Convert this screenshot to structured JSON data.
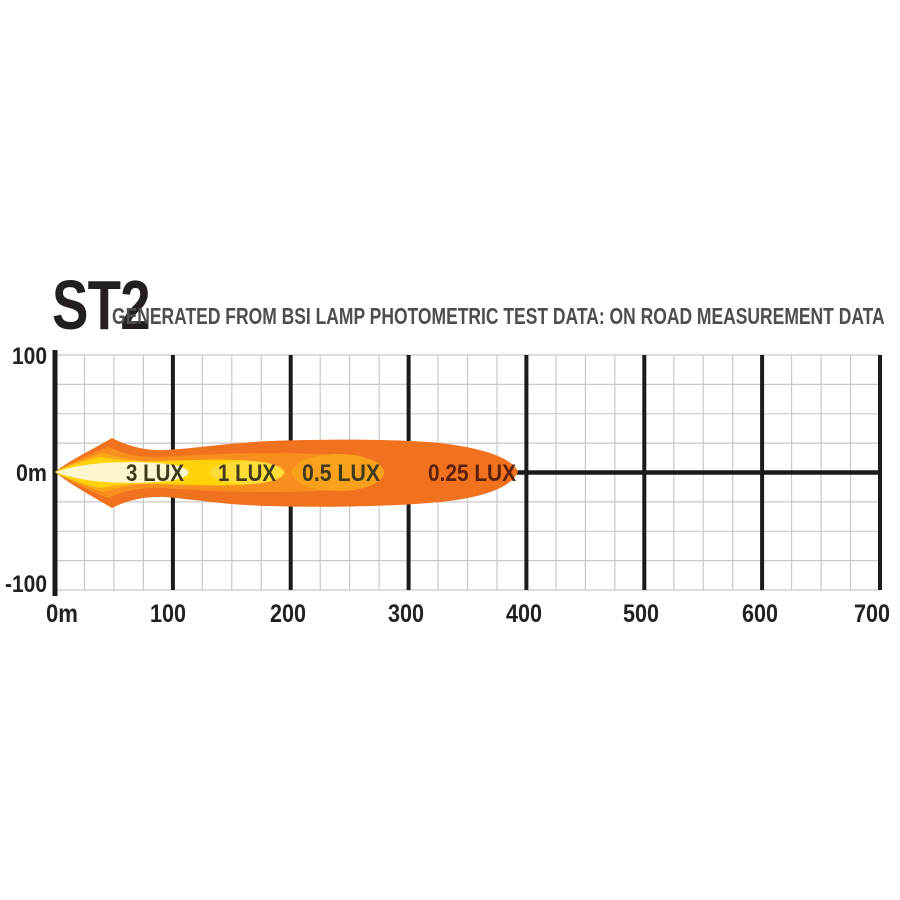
{
  "header": {
    "title": "ST2",
    "subtitle": "GENERATED FROM BSI LAMP PHOTOMETRIC TEST DATA: ON ROAD MEASUREMENT DATA"
  },
  "chart_data": {
    "type": "area",
    "title": "ST2",
    "subtitle": "GENERATED FROM BSI LAMP PHOTOMETRIC TEST DATA: ON ROAD MEASUREMENT DATA",
    "x_unit": "m",
    "xlim": [
      0,
      700
    ],
    "ylim": [
      -100,
      100
    ],
    "x_ticks": [
      "0m",
      "100",
      "200",
      "300",
      "400",
      "500",
      "600",
      "700"
    ],
    "y_ticks": [
      "100",
      "0m",
      "-100"
    ],
    "grid": {
      "on": true,
      "minor_step": 25,
      "major_step_x": 100,
      "minor_color": "#C8C9CB",
      "major_color": "#1B1B1B"
    },
    "legend_position": "inside-beam",
    "contours": [
      {
        "label": "3 LUX",
        "lux": 3,
        "reach_m": 115,
        "half_width_m": 9,
        "label_x_m": 85,
        "color": "#FDF6CE",
        "label_color": "#3E3A1C"
      },
      {
        "label": "1 LUX",
        "lux": 1,
        "reach_m": 195,
        "half_width_m": 13,
        "label_x_m": 163,
        "color": "#FFD30A",
        "label_color": "#3E3A1C"
      },
      {
        "label": "0.5 LUX",
        "lux": 0.5,
        "reach_m": 280,
        "half_width_m": 19,
        "label_x_m": 243,
        "color": "#F78E1E",
        "label_color": "#3E3A1C"
      },
      {
        "label": "0.25 LUX",
        "lux": 0.25,
        "reach_m": 393,
        "half_width_m": 29,
        "label_x_m": 355,
        "color": "#F0721F",
        "label_color": "#5D1F0E"
      }
    ],
    "accents": {
      "amber_fan": "#FBA919",
      "halo_half_lux": "#F9A11D",
      "halo_one_lux": "#FFDC38"
    }
  },
  "colors": {
    "background": "#FFFFFF",
    "title": "#231F20",
    "subtitle": "#4D4E50",
    "axis": "#1B1B1B",
    "minor_grid": "#C8C9CB"
  }
}
